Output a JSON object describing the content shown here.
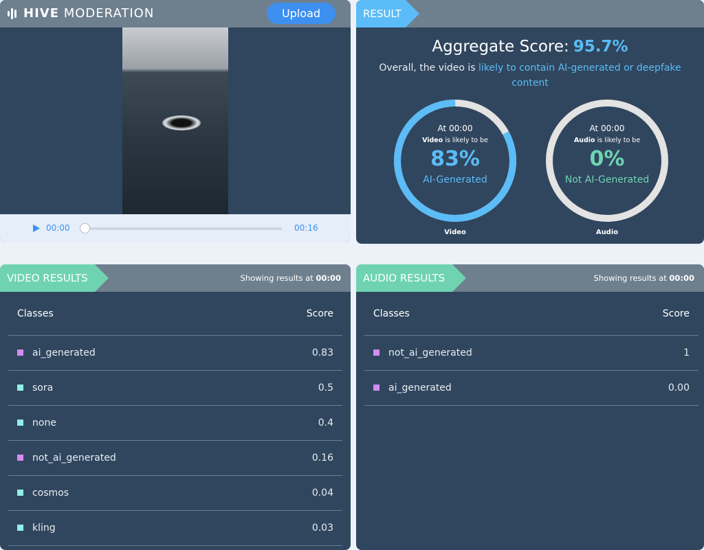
{
  "header": {
    "logo_bold": "HIVE",
    "logo_light": "MODERATION",
    "upload_label": "Upload"
  },
  "player": {
    "current": "00:00",
    "duration": "00:16",
    "progress": 0
  },
  "result": {
    "tag": "RESULT",
    "aggregate_label": "Aggregate Score:",
    "aggregate_value": "95.7%",
    "summary_prefix": "Overall, the video is",
    "summary_highlight": "likely to contain AI-generated or deepfake content",
    "video": {
      "at": "At 00:00",
      "kind": "Video",
      "likely": "is likely to be",
      "percent": "83%",
      "fraction": 0.83,
      "verdict": "AI-Generated",
      "caption": "Video",
      "color": "#5bbcf7"
    },
    "audio": {
      "at": "At 00:00",
      "kind": "Audio",
      "likely": "is likely to be",
      "percent": "0%",
      "fraction": 0,
      "verdict": "Not AI-Generated",
      "caption": "Audio",
      "color": "#6fd3b2"
    }
  },
  "video_results": {
    "tag": "VIDEO RESULTS",
    "showing": "Showing results at",
    "time": "00:00",
    "col_class": "Classes",
    "col_score": "Score",
    "rows": [
      {
        "name": "ai_generated",
        "score": "0.83",
        "color": "#d48cf0"
      },
      {
        "name": "sora",
        "score": "0.5",
        "color": "#8ff0e6"
      },
      {
        "name": "none",
        "score": "0.4",
        "color": "#8ff0e6"
      },
      {
        "name": "not_ai_generated",
        "score": "0.16",
        "color": "#d48cf0"
      },
      {
        "name": "cosmos",
        "score": "0.04",
        "color": "#8ff0e6"
      },
      {
        "name": "kling",
        "score": "0.03",
        "color": "#8ff0e6"
      }
    ]
  },
  "audio_results": {
    "tag": "AUDIO RESULTS",
    "showing": "Showing results at",
    "time": "00:00",
    "col_class": "Classes",
    "col_score": "Score",
    "rows": [
      {
        "name": "not_ai_generated",
        "score": "1",
        "color": "#d48cf0"
      },
      {
        "name": "ai_generated",
        "score": "0.00",
        "color": "#d48cf0"
      }
    ]
  }
}
